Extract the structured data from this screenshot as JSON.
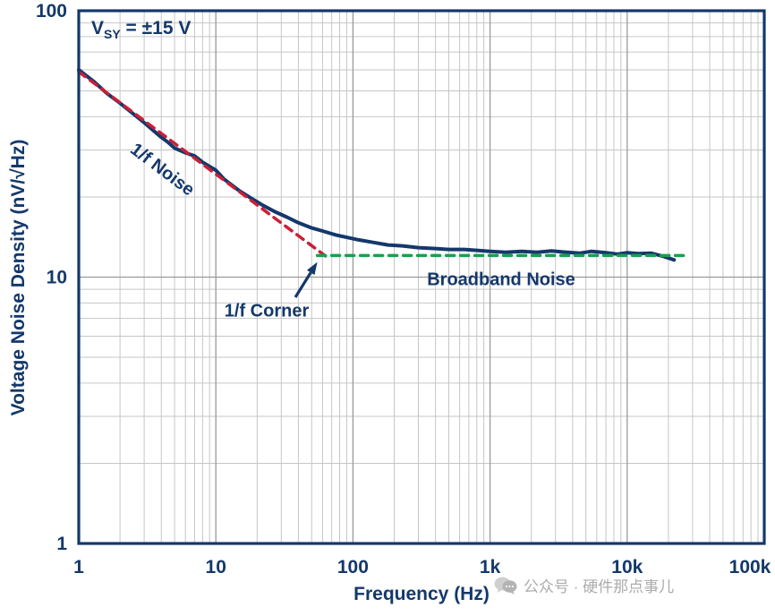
{
  "watermark": {
    "text": "公众号 · 硬件那点事儿",
    "icon": "chat-bubbles-icon"
  },
  "chart_data": {
    "type": "line",
    "title": "",
    "xlabel": "Frequency (Hz)",
    "ylabel": "Voltage Noise Density (nV/√Hz)",
    "x_scale": "log",
    "y_scale": "log",
    "xlim": [
      1,
      100000
    ],
    "ylim": [
      1,
      100
    ],
    "grid": "log-major-and-minor",
    "x_ticks": [
      {
        "value": 1,
        "label": "1"
      },
      {
        "value": 10,
        "label": "10"
      },
      {
        "value": 100,
        "label": "100"
      },
      {
        "value": 1000,
        "label": "1k"
      },
      {
        "value": 10000,
        "label": "10k"
      },
      {
        "value": 100000,
        "label": "100k"
      }
    ],
    "y_ticks": [
      {
        "value": 1,
        "label": "1"
      },
      {
        "value": 10,
        "label": "10"
      },
      {
        "value": 100,
        "label": "100"
      }
    ],
    "series": [
      {
        "name": "measured-voltage-noise",
        "color": "#14386b",
        "style": "solid",
        "width": 4,
        "points": [
          [
            1,
            60
          ],
          [
            1.3,
            54
          ],
          [
            1.6,
            49
          ],
          [
            2,
            45
          ],
          [
            2.5,
            41
          ],
          [
            3,
            38
          ],
          [
            3.5,
            35.5
          ],
          [
            4,
            33.5
          ],
          [
            4.5,
            32
          ],
          [
            5,
            30.5
          ],
          [
            6,
            29.3
          ],
          [
            7,
            28.5
          ],
          [
            8,
            27
          ],
          [
            9,
            26
          ],
          [
            10,
            25.2
          ],
          [
            11.5,
            23.3
          ],
          [
            13,
            22.2
          ],
          [
            15,
            21
          ],
          [
            18,
            19.8
          ],
          [
            22,
            18.6
          ],
          [
            27,
            17.6
          ],
          [
            33,
            16.8
          ],
          [
            40,
            16
          ],
          [
            50,
            15.3
          ],
          [
            60,
            14.9
          ],
          [
            75,
            14.4
          ],
          [
            90,
            14.1
          ],
          [
            110,
            13.8
          ],
          [
            140,
            13.5
          ],
          [
            180,
            13.2
          ],
          [
            230,
            13.1
          ],
          [
            300,
            12.9
          ],
          [
            400,
            12.8
          ],
          [
            500,
            12.7
          ],
          [
            650,
            12.7
          ],
          [
            800,
            12.6
          ],
          [
            1000,
            12.5
          ],
          [
            1300,
            12.4
          ],
          [
            1700,
            12.5
          ],
          [
            2200,
            12.4
          ],
          [
            2800,
            12.55
          ],
          [
            3600,
            12.4
          ],
          [
            4500,
            12.3
          ],
          [
            5500,
            12.5
          ],
          [
            7000,
            12.35
          ],
          [
            8500,
            12.2
          ],
          [
            10000,
            12.35
          ],
          [
            12000,
            12.25
          ],
          [
            15000,
            12.3
          ],
          [
            18000,
            12.0
          ],
          [
            22000,
            11.6
          ]
        ]
      },
      {
        "name": "one-over-f-asymptote",
        "color": "#c92038",
        "style": "dashed",
        "width": 3.5,
        "points": [
          [
            1,
            59
          ],
          [
            63,
            12
          ]
        ]
      },
      {
        "name": "broadband-asymptote",
        "color": "#18a14c",
        "style": "dashed",
        "width": 3.5,
        "points": [
          [
            55,
            12.05
          ],
          [
            28000,
            12.05
          ]
        ]
      }
    ],
    "annotations": {
      "supply": {
        "pre": "V",
        "sub": "SY",
        "post": " = ±15 V"
      },
      "one_over_f_noise": {
        "text": "1/f Noise"
      },
      "broadband_noise": {
        "text": "Broadband Noise"
      },
      "corner": {
        "text": "1/f Corner",
        "arrow_from": {
          "x": 38,
          "y": 8.4
        },
        "arrow_to": {
          "x": 55,
          "y": 11.4
        }
      }
    },
    "colors": {
      "axis": "#14386b",
      "curve": "#14386b",
      "asymptote_1f": "#c92038",
      "asymptote_broadband": "#18a14c",
      "grid_minor": "#c6c6c6",
      "grid_major": "#9a9a9a"
    }
  }
}
